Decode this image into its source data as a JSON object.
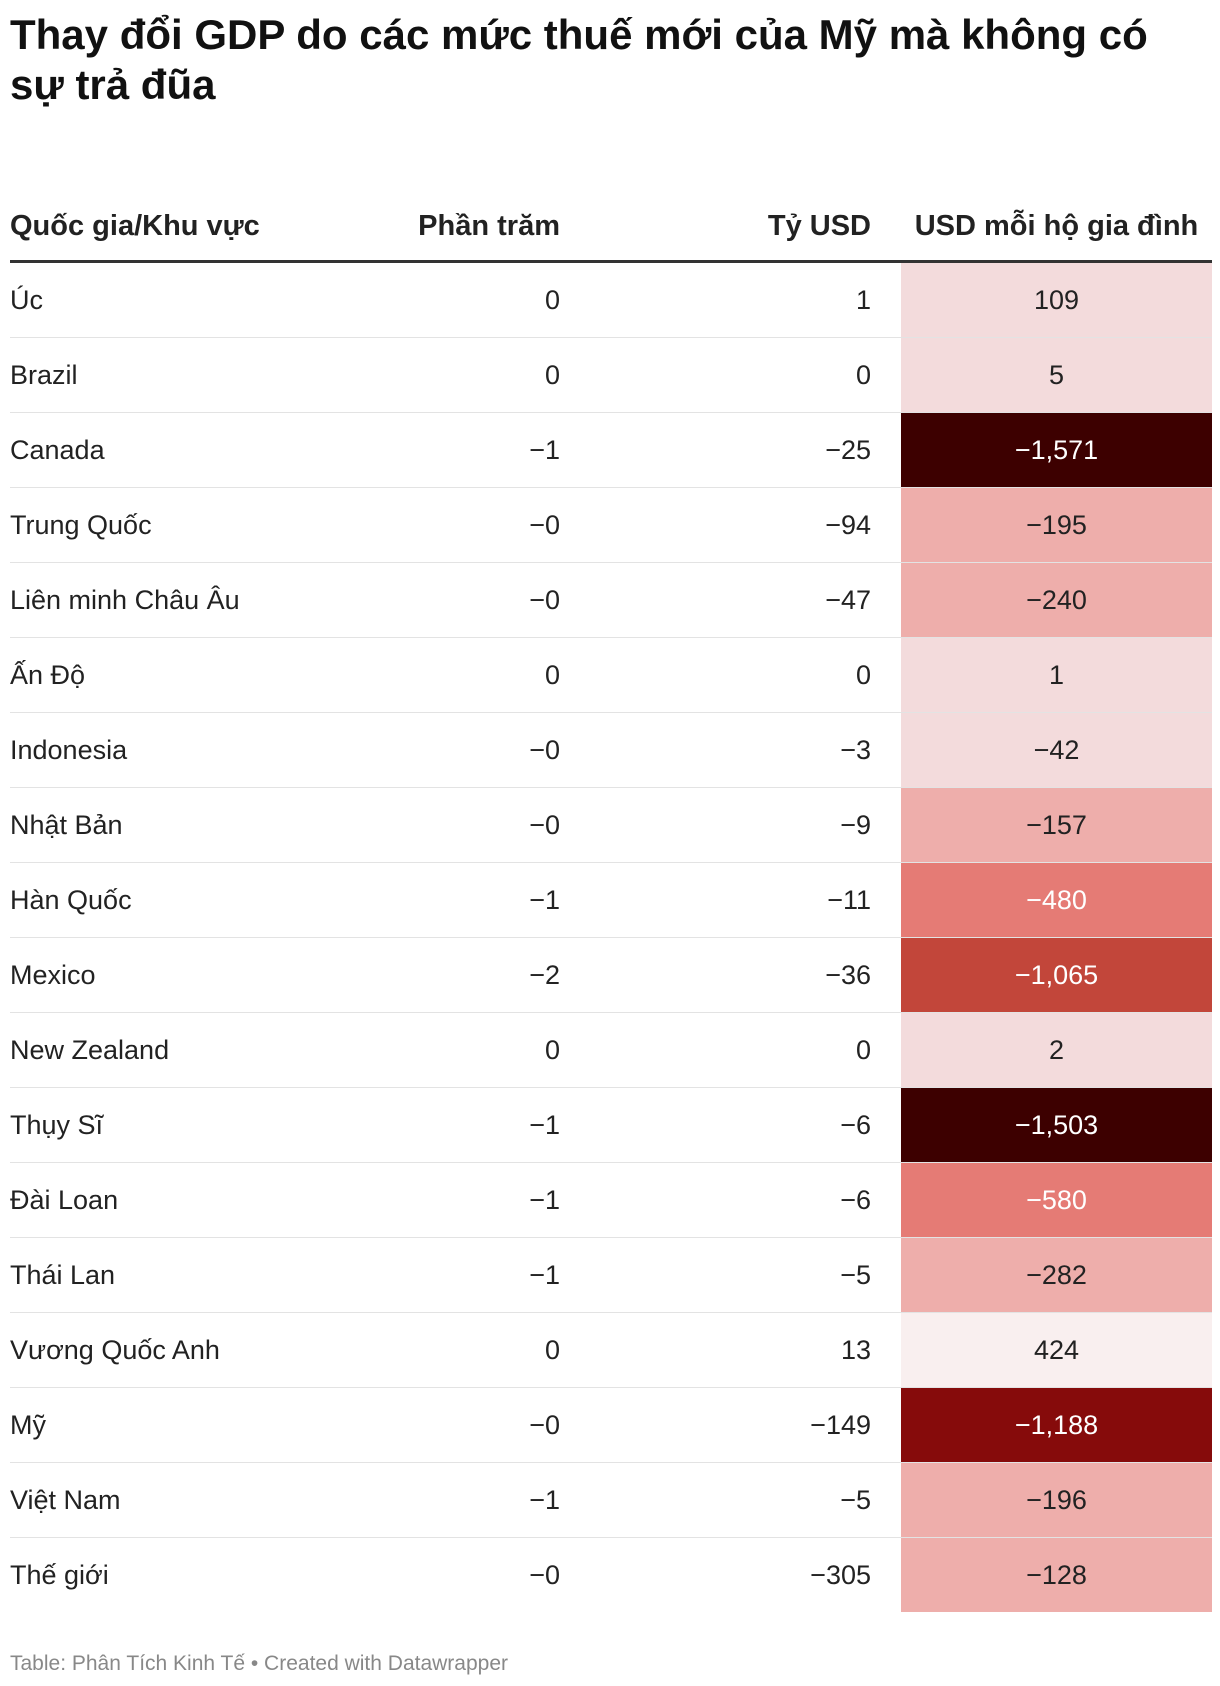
{
  "title": "Thay đổi GDP do các mức thuế mới của Mỹ mà không có sự trả đũa",
  "footer": "Table: Phân Tích Kinh Tế • Created with Datawrapper",
  "colors": {
    "scale_light": "#f5e6e6",
    "scale_medium": "#e97a74",
    "scale_dark": "#c2453b",
    "scale_darkest": "#3d0000"
  },
  "chart_data": {
    "type": "table",
    "title": "Thay đổi GDP do các mức thuế mới của Mỹ mà không có sự trả đũa",
    "columns": [
      "Quốc gia/Khu vực",
      "Phần trăm",
      "Tỷ USD",
      "USD mỗi hộ gia đình"
    ],
    "rows": [
      {
        "name": "Úc",
        "pct": "0",
        "usd": "1",
        "hh": "109",
        "hh_value": 109,
        "bg": "#f3dbdc",
        "fg": "#222222"
      },
      {
        "name": "Brazil",
        "pct": "0",
        "usd": "0",
        "hh": "5",
        "hh_value": 5,
        "bg": "#f3dbdc",
        "fg": "#222222"
      },
      {
        "name": "Canada",
        "pct": "−1",
        "usd": "−25",
        "hh": "−1,571",
        "hh_value": -1571,
        "bg": "#3d0000",
        "fg": "#ffffff"
      },
      {
        "name": "Trung Quốc",
        "pct": "−0",
        "usd": "−94",
        "hh": "−195",
        "hh_value": -195,
        "bg": "#eeaeab",
        "fg": "#222222"
      },
      {
        "name": "Liên minh Châu Âu",
        "pct": "−0",
        "usd": "−47",
        "hh": "−240",
        "hh_value": -240,
        "bg": "#eeaeab",
        "fg": "#222222"
      },
      {
        "name": "Ấn Độ",
        "pct": "0",
        "usd": "0",
        "hh": "1",
        "hh_value": 1,
        "bg": "#f3dbdc",
        "fg": "#222222"
      },
      {
        "name": "Indonesia",
        "pct": "−0",
        "usd": "−3",
        "hh": "−42",
        "hh_value": -42,
        "bg": "#f3dbdc",
        "fg": "#222222"
      },
      {
        "name": "Nhật Bản",
        "pct": "−0",
        "usd": "−9",
        "hh": "−157",
        "hh_value": -157,
        "bg": "#eeaeab",
        "fg": "#222222"
      },
      {
        "name": "Hàn Quốc",
        "pct": "−1",
        "usd": "−11",
        "hh": "−480",
        "hh_value": -480,
        "bg": "#e57b75",
        "fg": "#ffffff"
      },
      {
        "name": "Mexico",
        "pct": "−2",
        "usd": "−36",
        "hh": "−1,065",
        "hh_value": -1065,
        "bg": "#c2463a",
        "fg": "#ffffff"
      },
      {
        "name": "New Zealand",
        "pct": "0",
        "usd": "0",
        "hh": "2",
        "hh_value": 2,
        "bg": "#f3dbdc",
        "fg": "#222222"
      },
      {
        "name": "Thụy Sĩ",
        "pct": "−1",
        "usd": "−6",
        "hh": "−1,503",
        "hh_value": -1503,
        "bg": "#3d0000",
        "fg": "#ffffff"
      },
      {
        "name": "Đài Loan",
        "pct": "−1",
        "usd": "−6",
        "hh": "−580",
        "hh_value": -580,
        "bg": "#e57b75",
        "fg": "#ffffff"
      },
      {
        "name": "Thái Lan",
        "pct": "−1",
        "usd": "−5",
        "hh": "−282",
        "hh_value": -282,
        "bg": "#eeaeab",
        "fg": "#222222"
      },
      {
        "name": "Vương Quốc Anh",
        "pct": "0",
        "usd": "13",
        "hh": "424",
        "hh_value": 424,
        "bg": "#f9efef",
        "fg": "#222222"
      },
      {
        "name": "Mỹ",
        "pct": "−0",
        "usd": "−149",
        "hh": "−1,188",
        "hh_value": -1188,
        "bg": "#860b0b",
        "fg": "#ffffff"
      },
      {
        "name": "Việt Nam",
        "pct": "−1",
        "usd": "−5",
        "hh": "−196",
        "hh_value": -196,
        "bg": "#eeaeab",
        "fg": "#222222"
      },
      {
        "name": "Thế giới",
        "pct": "−0",
        "usd": "−305",
        "hh": "−128",
        "hh_value": -128,
        "bg": "#eeaeab",
        "fg": "#222222"
      }
    ]
  }
}
